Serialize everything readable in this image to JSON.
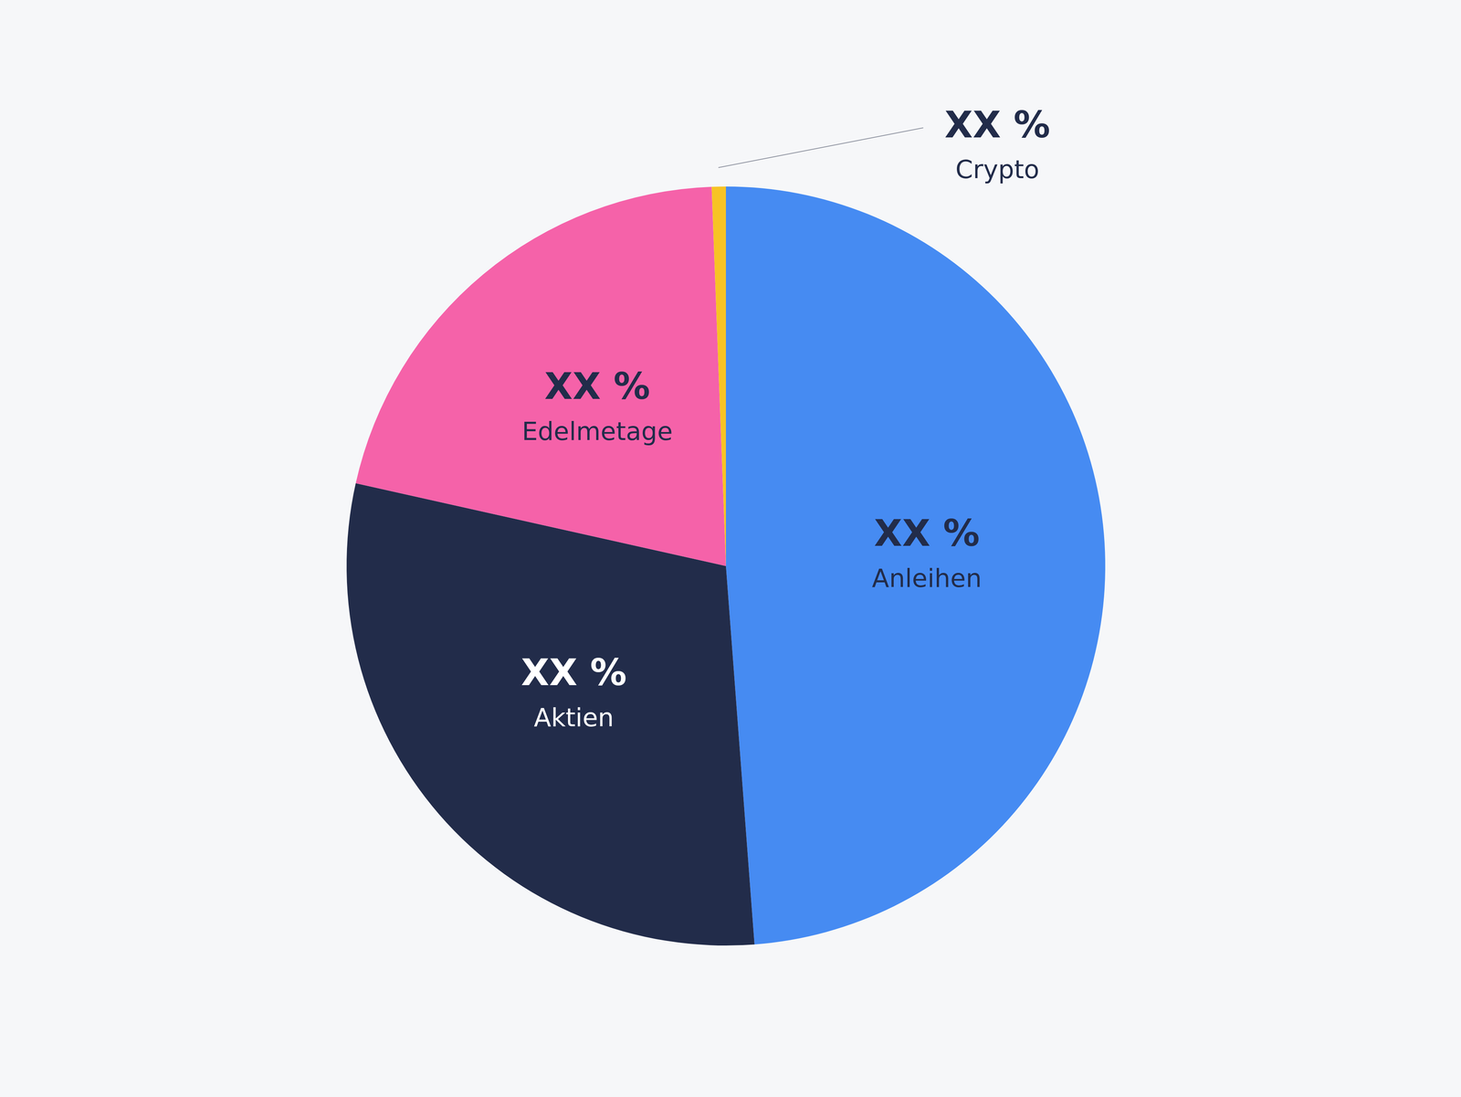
{
  "chart_data": {
    "type": "pie",
    "categories": [
      "Anleihen",
      "Aktien",
      "Edelmetage",
      "Crypto"
    ],
    "values": [
      48.8,
      29.7,
      20.9,
      0.6
    ],
    "value_labels": [
      "XX %",
      "XX %",
      "XX %",
      "XX %"
    ],
    "colors": [
      "#468bf2",
      "#222c4a",
      "#f562a9",
      "#f7c325"
    ],
    "data_labels": true
  }
}
